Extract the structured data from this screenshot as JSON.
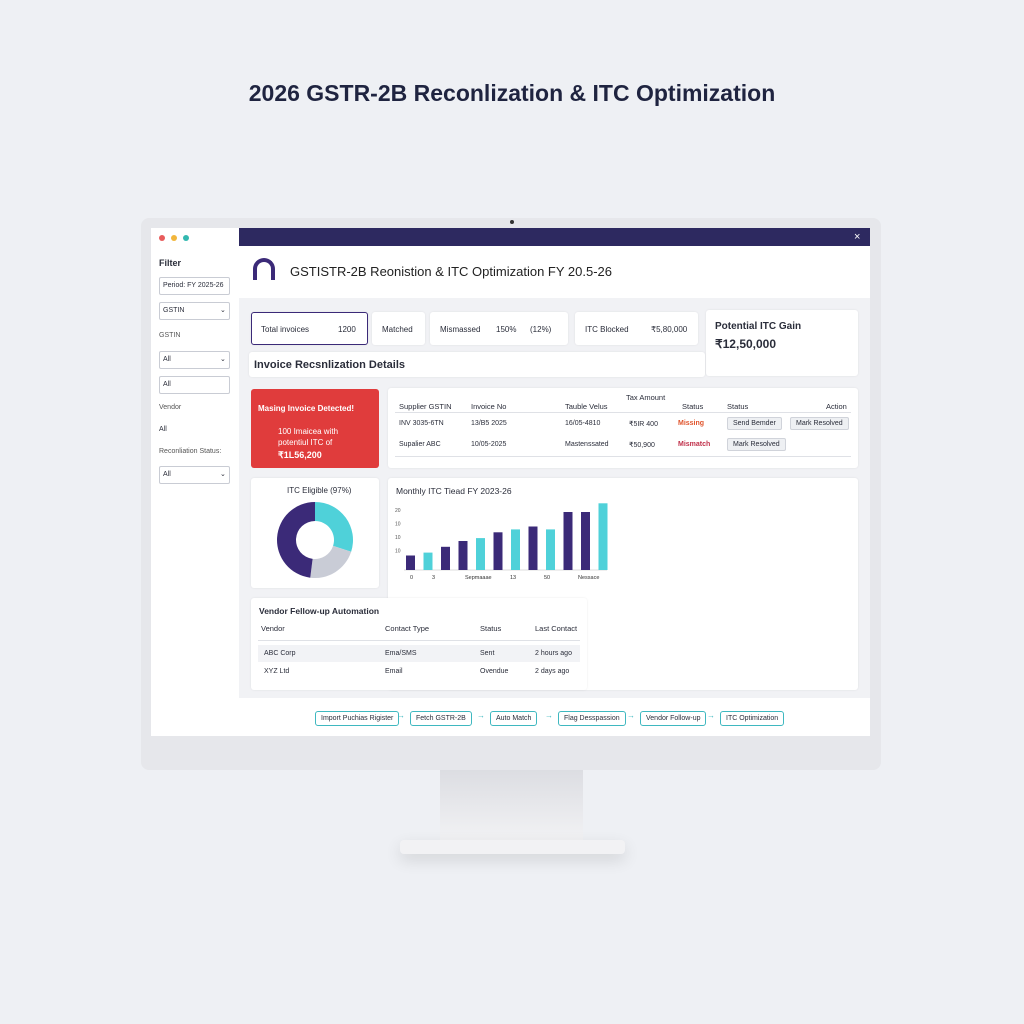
{
  "page_title": "2026 GSTR-2B Reconlization & ITC Optimization",
  "sidebar": {
    "heading": "Filter",
    "period": "Period: FY 2025-26",
    "gstin_select": "GSTIN",
    "gstin_label": "GSTIN",
    "gstin_value": "All",
    "all_input": "All",
    "vendor_label": "Vendor",
    "vendor_value": "All",
    "status_label": "Reconliation Status:",
    "status_value": "All"
  },
  "header": {
    "close": "×",
    "title": "GSTISTR-2B Reonistion & ITC Optimization FY 20.5-26"
  },
  "kpis": [
    {
      "label": "Total invoices",
      "value": "1200"
    },
    {
      "label": "Matched"
    },
    {
      "label": "Mismassed",
      "value": "150%",
      "extra": "(12%)"
    },
    {
      "label": "ITC Blocked",
      "value": "₹5,80,000"
    }
  ],
  "potential": {
    "label": "Potential ITC Gain",
    "value": "₹12,50,000"
  },
  "section_title": "Invoice Recsnlization Details",
  "alert": {
    "title": "Masing Invoice Detected!",
    "body": "100 Imaicea with potentiul ITC of",
    "amount": "₹1L56,200"
  },
  "invoice_table": {
    "header": [
      "Supplier GSTIN",
      "Invoice No",
      "Tauble Velus",
      "Tax Amount",
      "Status",
      "Status",
      "Action"
    ],
    "rows": [
      [
        "INV 3035-6TN",
        "13/B5 2025",
        "16/05-4810",
        "₹5IR 400",
        "Missing",
        "Send Bemder",
        "Mark Resolved"
      ],
      [
        "Supalier ABC",
        "10/05-2025",
        "Mastenssated",
        "₹50,900",
        "Mismatch",
        "Mark Resolved"
      ]
    ]
  },
  "donut": {
    "title": "ITC Eligible (97%)",
    "values": [
      30,
      22,
      48
    ],
    "colors": [
      "#4fd1d9",
      "#c9ccd6",
      "#3b2a78"
    ]
  },
  "trend": {
    "type": "bar",
    "title": "Monthly ITC Tiead FY 2023-26",
    "y_labels": [
      "20",
      "10",
      "10",
      "10"
    ],
    "x_labels": [
      "0",
      "3",
      "Sepmaaae",
      "13",
      "50",
      "Nessace"
    ],
    "ylim": [
      0,
      24
    ],
    "values": [
      5,
      6,
      8,
      10,
      11,
      13,
      14,
      15,
      14,
      20,
      20,
      23
    ],
    "colors": [
      "#3b2a78",
      "#4fd1d9",
      "#3b2a78",
      "#3b2a78",
      "#4fd1d9",
      "#3b2a78",
      "#4fd1d9",
      "#3b2a78",
      "#4fd1d9",
      "#3b2a78",
      "#3b2a78",
      "#4fd1d9"
    ]
  },
  "vendor_table": {
    "title": "Vendor Fellow-up Automation",
    "header": [
      "Vendor",
      "Contact Type",
      "Status",
      "Last Contact"
    ],
    "rows": [
      [
        "ABC Corp",
        "Ema/SMS",
        "Sent",
        "2 hours ago"
      ],
      [
        "XYZ Ltd",
        "Email",
        "Ovendue",
        "2 days ago"
      ]
    ]
  },
  "workflow": [
    "Import Puchias Rigister",
    "Fetch GSTR-2B",
    "Auto Match",
    "Flag Desspassion",
    "Vendor Follow-up",
    "ITC Optimization"
  ]
}
